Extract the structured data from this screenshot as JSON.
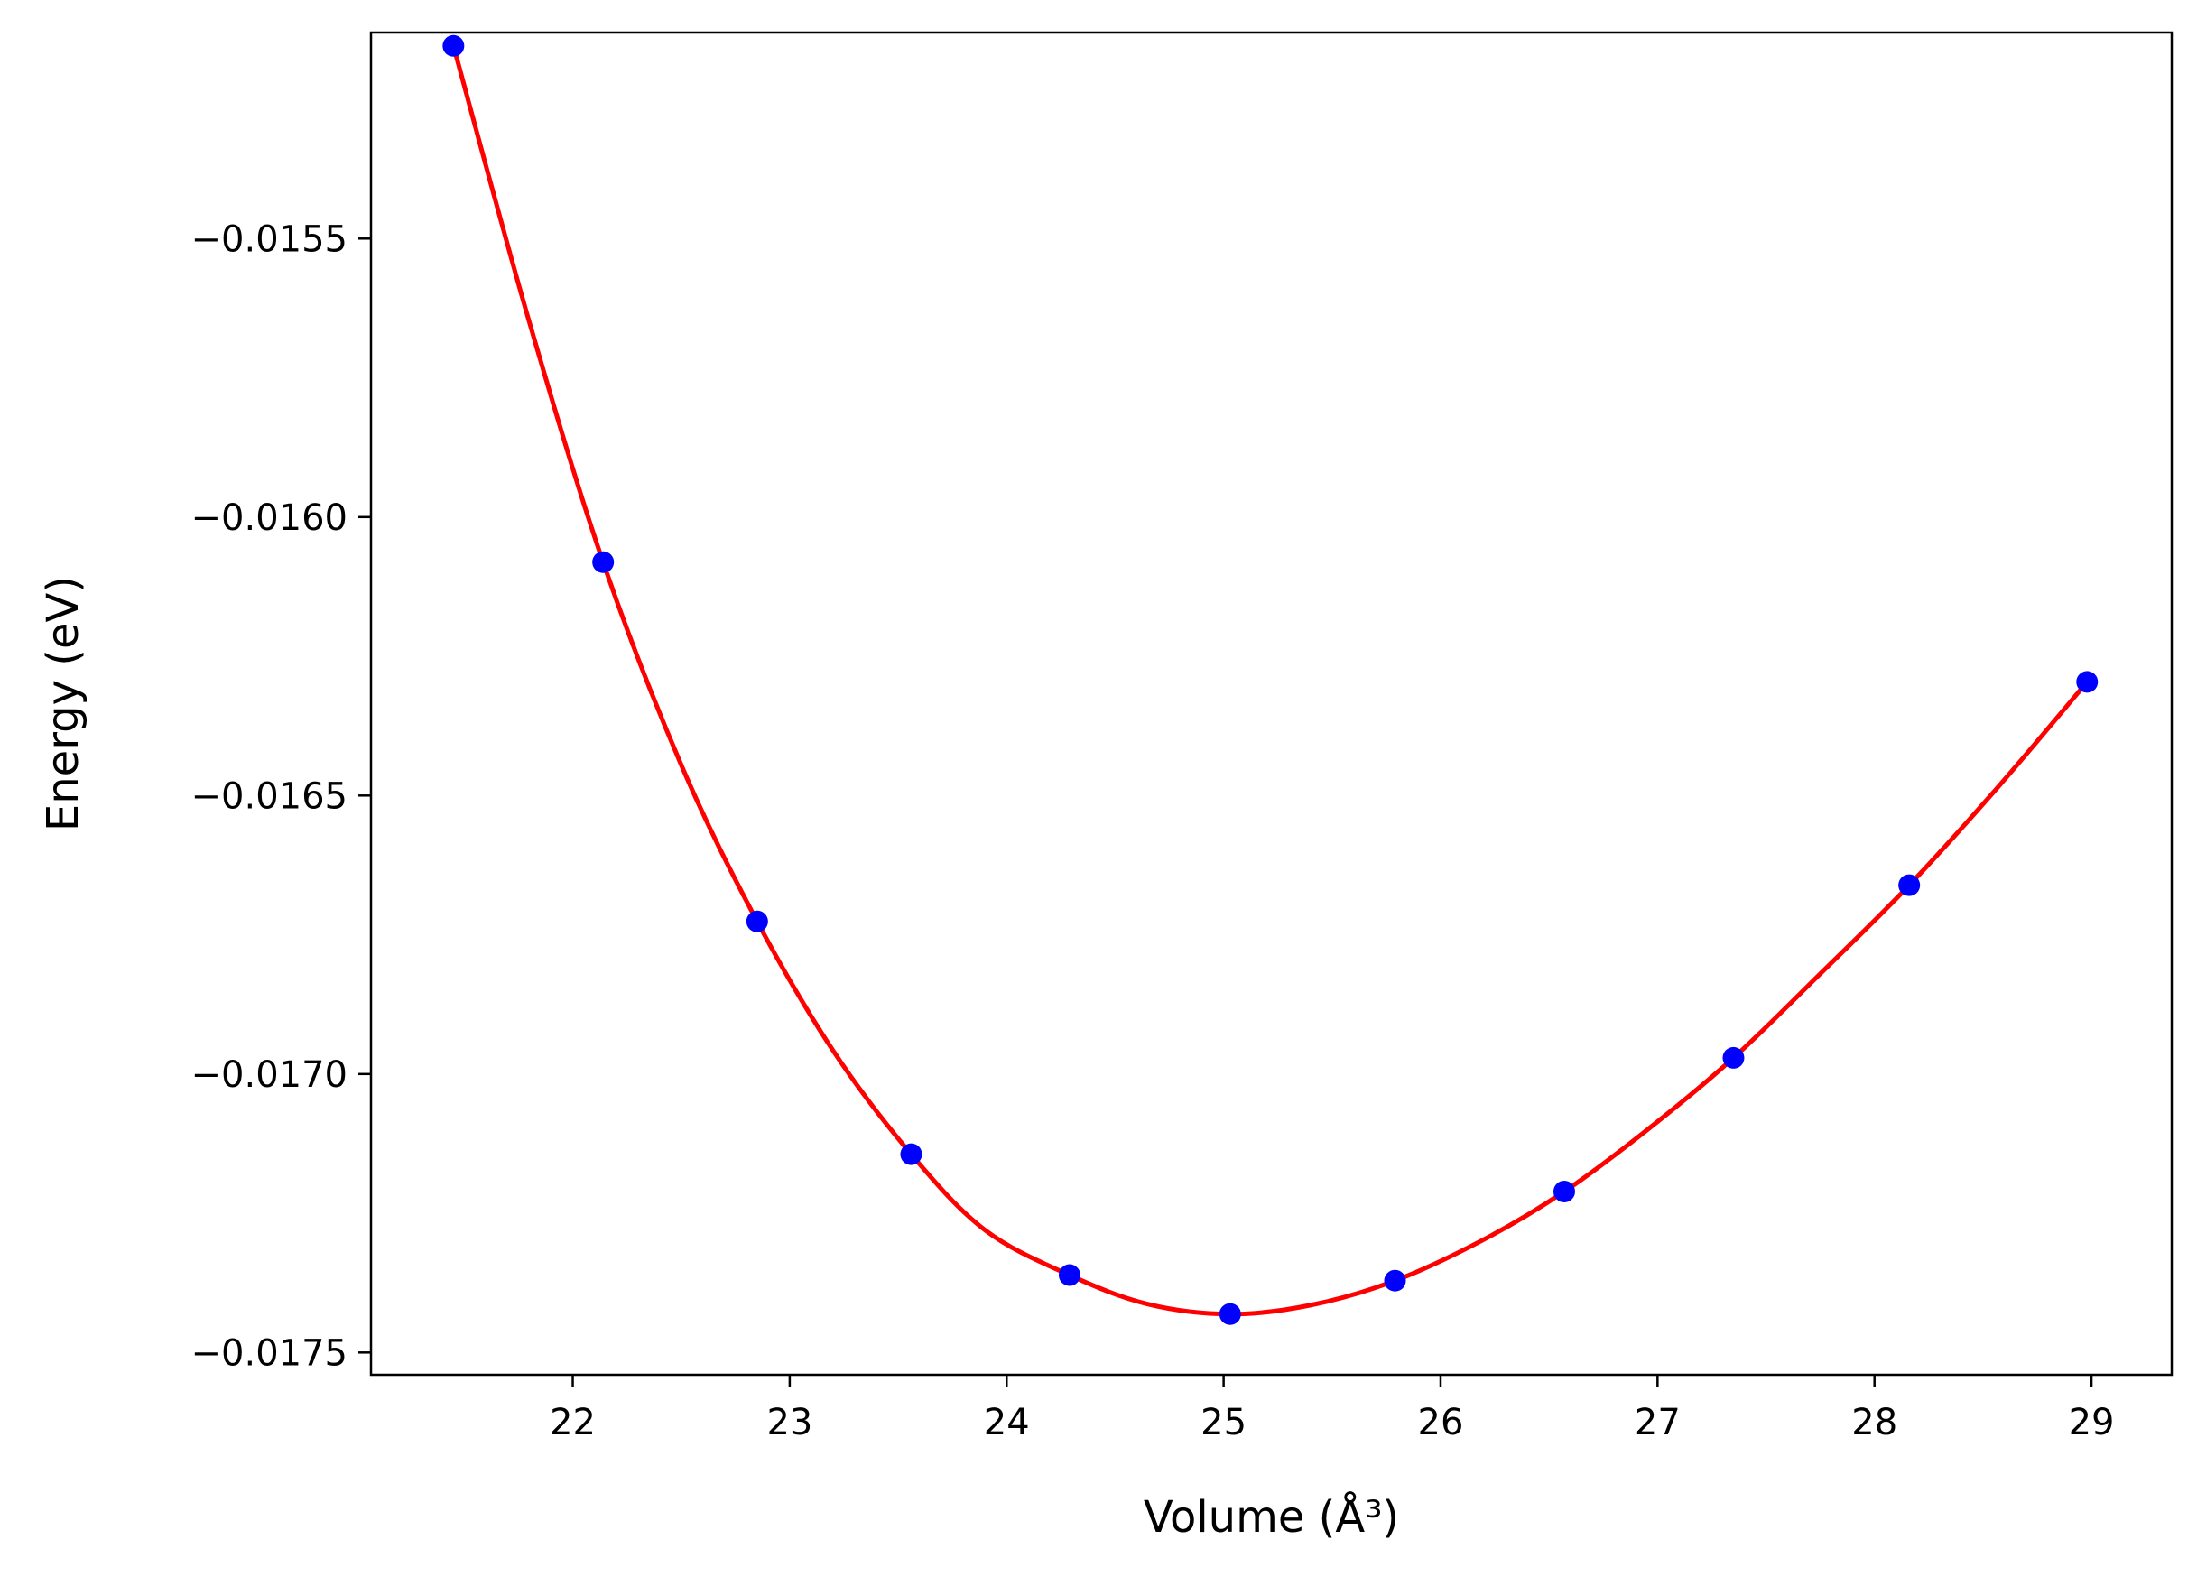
{
  "chart_data": {
    "type": "scatter",
    "xlabel": "Volume (Å³)",
    "ylabel": "Energy (eV)",
    "xlim": [
      21.07,
      29.37
    ],
    "ylim": [
      -0.01754,
      -0.01513
    ],
    "xticks": [
      22,
      23,
      24,
      25,
      26,
      27,
      28,
      29
    ],
    "xtick_labels": [
      "22",
      "23",
      "24",
      "25",
      "26",
      "27",
      "28",
      "29"
    ],
    "yticks": [
      -0.0155,
      -0.016,
      -0.0165,
      -0.017,
      -0.0175
    ],
    "ytick_labels": [
      "−0.0155",
      "−0.0160",
      "−0.0165",
      "−0.0170",
      "−0.0175"
    ],
    "grid": false,
    "series": [
      {
        "kind": "points",
        "color": "#0000ff",
        "x": [
          21.45,
          22.14,
          22.85,
          23.56,
          24.29,
          25.03,
          25.79,
          26.57,
          27.35,
          28.16,
          28.98
        ],
        "y": [
          -0.015154,
          -0.016081,
          -0.016726,
          -0.017144,
          -0.017361,
          -0.017431,
          -0.017371,
          -0.017211,
          -0.016971,
          -0.016661,
          -0.016296
        ]
      },
      {
        "kind": "line",
        "color": "#ff0000",
        "x": [
          21.45,
          21.8,
          22.14,
          22.5,
          22.85,
          23.2,
          23.56,
          23.9,
          24.29,
          24.65,
          25.03,
          25.4,
          25.79,
          26.2,
          26.57,
          26.95,
          27.35,
          27.75,
          28.16,
          28.58,
          28.98
        ],
        "y": [
          -0.015154,
          -0.01565,
          -0.016081,
          -0.016445,
          -0.016726,
          -0.016958,
          -0.017144,
          -0.01728,
          -0.017361,
          -0.017413,
          -0.017431,
          -0.017415,
          -0.017371,
          -0.017297,
          -0.017211,
          -0.017101,
          -0.016971,
          -0.01682,
          -0.016661,
          -0.01648,
          -0.016296
        ]
      }
    ]
  }
}
